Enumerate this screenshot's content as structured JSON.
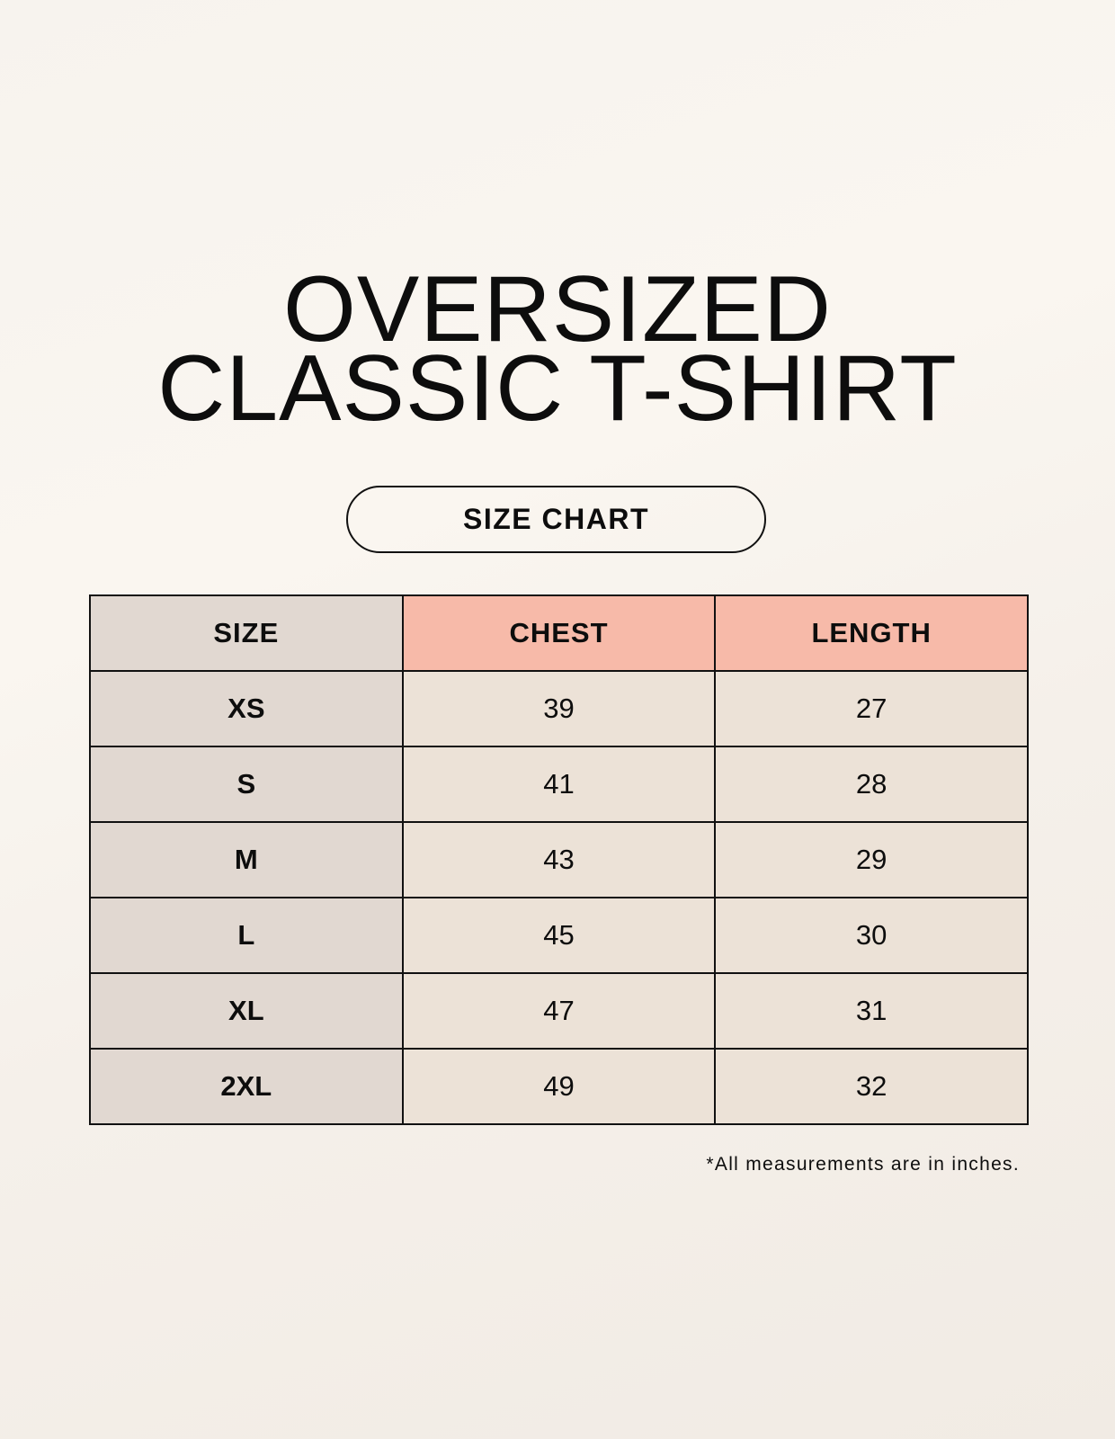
{
  "title": {
    "line1": "OVERSIZED",
    "line2": "CLASSIC T-SHIRT"
  },
  "badge": "SIZE CHART",
  "table": {
    "headers": [
      "SIZE",
      "CHEST",
      "LENGTH"
    ],
    "rows": [
      [
        "XS",
        "39",
        "27"
      ],
      [
        "S",
        "41",
        "28"
      ],
      [
        "M",
        "43",
        "29"
      ],
      [
        "L",
        "45",
        "30"
      ],
      [
        "XL",
        "47",
        "31"
      ],
      [
        "2XL",
        "49",
        "32"
      ]
    ]
  },
  "footnote": "*All measurements are in inches.",
  "colors": {
    "header_accent": "#f7baa9",
    "size_column": "#e1d8d1",
    "cell": "#ece2d7"
  }
}
